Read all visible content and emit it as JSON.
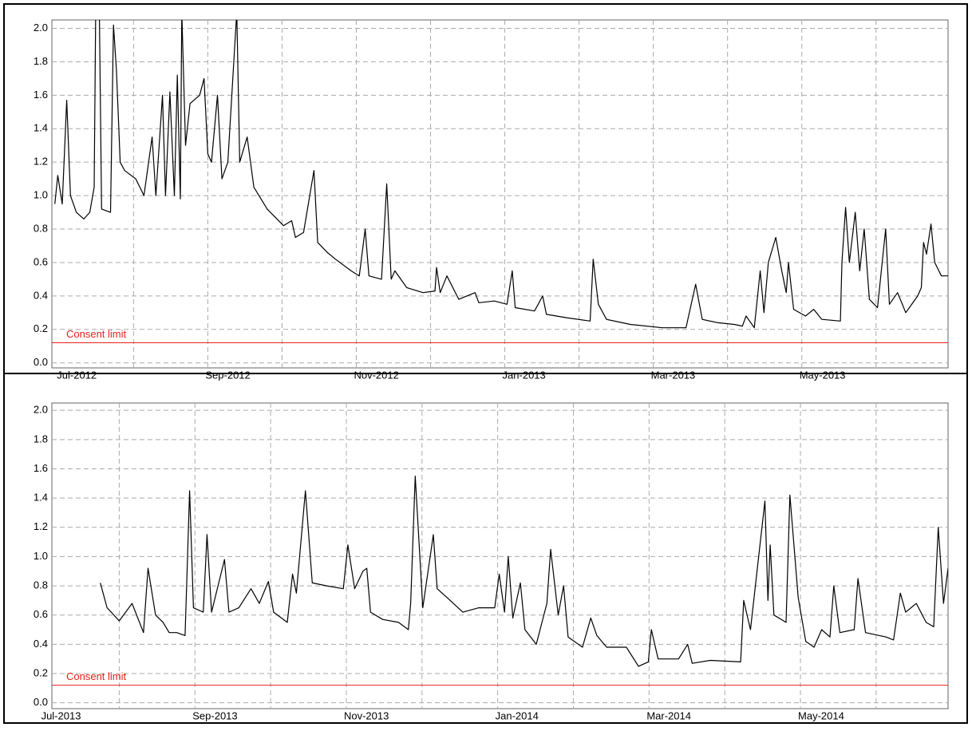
{
  "chart_data": [
    {
      "type": "line",
      "ylim": [
        -0.03,
        2.05
      ],
      "yticks": [
        {
          "value": 0,
          "label": "0.0"
        },
        0.2,
        0.4,
        0.6,
        0.8,
        {
          "value": 1,
          "label": "1.0"
        },
        1.2,
        1.4,
        1.6,
        1.8,
        {
          "value": 2,
          "label": "2.0"
        }
      ],
      "xlim": [
        -0.1,
        11.97
      ],
      "xticks": [
        {
          "value": 0,
          "label": "Jul-2012"
        },
        {
          "value": 2,
          "label": "Sep-2012"
        },
        {
          "value": 4,
          "label": "Nov-2012"
        },
        {
          "value": 6,
          "label": "Jan-2013"
        },
        {
          "value": 8,
          "label": "Mar-2013"
        },
        {
          "value": 10,
          "label": "May-2013"
        }
      ],
      "xgrid": [
        1,
        2,
        3,
        4,
        5,
        6,
        7,
        8,
        9,
        10,
        11
      ],
      "grid": true,
      "annotation": {
        "text": "Consent limit",
        "value": 0.12,
        "color": "#e8201a"
      },
      "series": [
        {
          "color": "#000000",
          "x": [
            -0.06,
            -0.02,
            0.04,
            0.1,
            0.15,
            0.23,
            0.33,
            0.41,
            0.47,
            0.49,
            0.54,
            0.57,
            0.69,
            0.73,
            0.77,
            0.82,
            0.88,
            1.03,
            1.14,
            1.25,
            1.3,
            1.39,
            1.43,
            1.49,
            1.55,
            1.59,
            1.63,
            1.65,
            1.7,
            1.76,
            1.89,
            1.95,
            2.0,
            2.05,
            2.13,
            2.19,
            2.27,
            2.39,
            2.43,
            2.53,
            2.62,
            2.8,
            3.02,
            3.13,
            3.18,
            3.29,
            3.43,
            3.48,
            3.61,
            3.72,
            3.93,
            4.04,
            4.12,
            4.17,
            4.34,
            4.41,
            4.47,
            4.52,
            4.68,
            4.9,
            5.06,
            5.08,
            5.13,
            5.22,
            5.38,
            5.6,
            5.65,
            5.86,
            6.03,
            6.1,
            6.14,
            6.4,
            6.51,
            6.56,
            6.83,
            7.15,
            7.19,
            7.26,
            7.37,
            7.69,
            8.12,
            8.44,
            8.57,
            8.66,
            8.87,
            9.09,
            9.2,
            9.25,
            9.36,
            9.44,
            9.49,
            9.55,
            9.65,
            9.73,
            9.79,
            9.82,
            9.89,
            10.05,
            10.16,
            10.27,
            10.52,
            10.54,
            10.59,
            10.64,
            10.72,
            10.78,
            10.84,
            10.91,
            11.02,
            11.13,
            11.18,
            11.29,
            11.4,
            11.56,
            11.61,
            11.64,
            11.68,
            11.74,
            11.79,
            11.88,
            11.97
          ],
          "values": [
            0.95,
            1.12,
            0.95,
            1.57,
            1.0,
            0.9,
            0.86,
            0.9,
            1.05,
            2.1,
            2.1,
            0.92,
            0.9,
            2.02,
            1.75,
            1.2,
            1.15,
            1.1,
            1.0,
            1.35,
            1.0,
            1.6,
            1.0,
            1.62,
            1.0,
            1.72,
            0.98,
            2.1,
            1.3,
            1.55,
            1.6,
            1.7,
            1.25,
            1.2,
            1.6,
            1.1,
            1.2,
            2.1,
            1.2,
            1.35,
            1.05,
            0.92,
            0.82,
            0.85,
            0.75,
            0.78,
            1.15,
            0.72,
            0.66,
            0.62,
            0.55,
            0.52,
            0.8,
            0.52,
            0.5,
            1.07,
            0.5,
            0.55,
            0.45,
            0.42,
            0.43,
            0.57,
            0.42,
            0.52,
            0.38,
            0.42,
            0.36,
            0.37,
            0.35,
            0.55,
            0.33,
            0.31,
            0.4,
            0.29,
            0.27,
            0.25,
            0.62,
            0.35,
            0.26,
            0.23,
            0.21,
            0.21,
            0.47,
            0.26,
            0.24,
            0.23,
            0.22,
            0.28,
            0.21,
            0.55,
            0.3,
            0.6,
            0.75,
            0.55,
            0.42,
            0.6,
            0.32,
            0.28,
            0.32,
            0.26,
            0.25,
            0.6,
            0.93,
            0.6,
            0.9,
            0.55,
            0.8,
            0.38,
            0.33,
            0.8,
            0.35,
            0.42,
            0.3,
            0.4,
            0.45,
            0.72,
            0.65,
            0.83,
            0.6,
            0.52,
            0.52
          ]
        }
      ]
    },
    {
      "type": "line",
      "ylim": [
        -0.04,
        2.05
      ],
      "yticks": [
        {
          "value": 0,
          "label": "0.0"
        },
        0.2,
        0.4,
        0.6,
        0.8,
        {
          "value": 1,
          "label": "1.0"
        },
        1.2,
        1.4,
        1.6,
        1.8,
        {
          "value": 2,
          "label": "2.0"
        }
      ],
      "xlim": [
        0.11,
        11.95
      ],
      "xticks": [
        {
          "value": 0,
          "label": "Jul-2013"
        },
        {
          "value": 2,
          "label": "Sep-2013"
        },
        {
          "value": 4,
          "label": "Nov-2013"
        },
        {
          "value": 6,
          "label": "Jan-2014"
        },
        {
          "value": 8,
          "label": "Mar-2014"
        },
        {
          "value": 10,
          "label": "May-2014"
        }
      ],
      "xgrid": [
        1,
        2,
        3,
        4,
        5,
        6,
        7,
        8,
        9,
        10,
        11
      ],
      "grid": true,
      "annotation": {
        "text": "Consent limit",
        "value": 0.12,
        "color": "#e8201a"
      },
      "series": [
        {
          "color": "#000000",
          "x": [
            0.75,
            0.84,
            1.0,
            1.17,
            1.32,
            1.38,
            1.48,
            1.58,
            1.66,
            1.76,
            1.87,
            1.93,
            1.98,
            2.11,
            2.16,
            2.22,
            2.39,
            2.45,
            2.58,
            2.74,
            2.85,
            2.97,
            3.04,
            3.22,
            3.29,
            3.34,
            3.46,
            3.55,
            3.74,
            3.96,
            4.02,
            4.11,
            4.22,
            4.27,
            4.32,
            4.48,
            4.69,
            4.82,
            4.85,
            4.91,
            5.01,
            5.15,
            5.2,
            5.33,
            5.54,
            5.75,
            5.96,
            6.02,
            6.09,
            6.14,
            6.2,
            6.3,
            6.36,
            6.51,
            6.65,
            6.7,
            6.8,
            6.87,
            6.93,
            7.12,
            7.23,
            7.31,
            7.44,
            7.7,
            7.86,
            7.99,
            8.03,
            8.12,
            8.39,
            8.51,
            8.57,
            8.81,
            9.21,
            9.25,
            9.34,
            9.53,
            9.57,
            9.6,
            9.65,
            9.81,
            9.86,
            9.97,
            10.07,
            10.18,
            10.28,
            10.39,
            10.44,
            10.52,
            10.71,
            10.76,
            10.86,
            11.13,
            11.23,
            11.32,
            11.39,
            11.53,
            11.66,
            11.76,
            11.82,
            11.89,
            11.95
          ],
          "values": [
            0.82,
            0.65,
            0.56,
            0.68,
            0.48,
            0.92,
            0.6,
            0.55,
            0.48,
            0.48,
            0.46,
            1.45,
            0.65,
            0.62,
            1.15,
            0.62,
            0.98,
            0.62,
            0.65,
            0.78,
            0.68,
            0.83,
            0.62,
            0.55,
            0.88,
            0.75,
            1.45,
            0.82,
            0.8,
            0.78,
            1.08,
            0.78,
            0.9,
            0.92,
            0.62,
            0.57,
            0.55,
            0.5,
            0.68,
            1.55,
            0.65,
            1.15,
            0.78,
            0.72,
            0.62,
            0.65,
            0.65,
            0.88,
            0.62,
            1.0,
            0.58,
            0.82,
            0.5,
            0.4,
            0.68,
            1.05,
            0.6,
            0.8,
            0.45,
            0.38,
            0.58,
            0.46,
            0.38,
            0.38,
            0.25,
            0.28,
            0.5,
            0.3,
            0.3,
            0.4,
            0.27,
            0.29,
            0.28,
            0.7,
            0.5,
            1.38,
            0.7,
            1.08,
            0.6,
            0.55,
            1.42,
            0.72,
            0.42,
            0.38,
            0.5,
            0.45,
            0.8,
            0.48,
            0.5,
            0.85,
            0.48,
            0.45,
            0.43,
            0.75,
            0.62,
            0.68,
            0.55,
            0.52,
            1.2,
            0.68,
            0.92
          ]
        }
      ]
    }
  ]
}
